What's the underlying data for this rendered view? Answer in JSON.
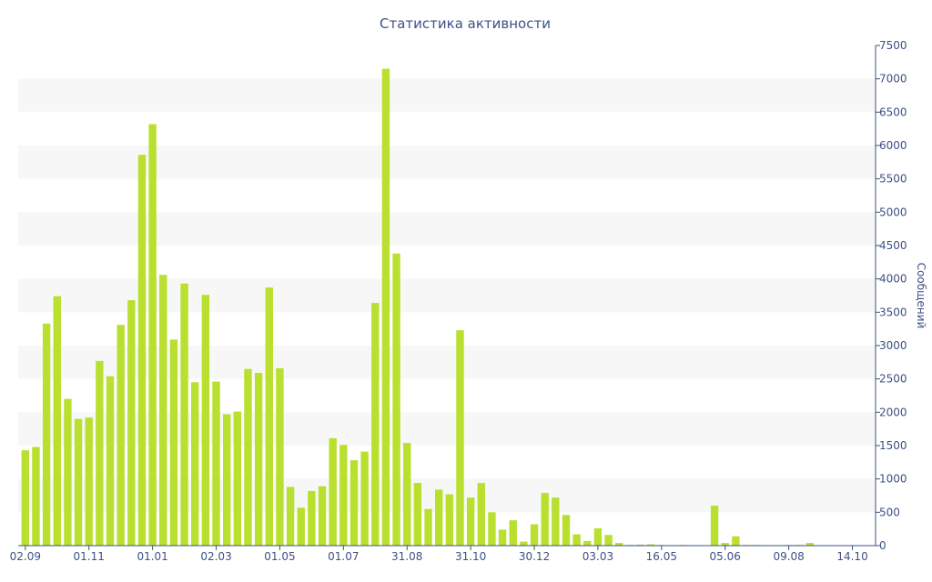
{
  "chart_data": {
    "type": "bar",
    "title": "Статистика активности",
    "ylabel": "Сообщений",
    "xlabel": "",
    "ylim": [
      0,
      7500
    ],
    "yticks": [
      0,
      500,
      1000,
      1500,
      2000,
      2500,
      3000,
      3500,
      4000,
      4500,
      5000,
      5500,
      6000,
      6500,
      7000,
      7500
    ],
    "xtick_labels": [
      "02.09",
      "01.11",
      "01.01",
      "02.03",
      "01.05",
      "01.07",
      "31.08",
      "31.10",
      "30.12",
      "03.03",
      "16.05",
      "05.06",
      "09.08",
      "14.10"
    ],
    "xtick_bar_index": [
      0,
      6,
      12,
      18,
      24,
      30,
      36,
      42,
      48,
      54,
      60,
      66,
      72,
      78
    ],
    "bar_color": "#b9e02f",
    "grid": "alternating horizontal bands",
    "y_axis_position": "right",
    "values": [
      1430,
      1480,
      3330,
      3740,
      2200,
      1900,
      1920,
      2770,
      2540,
      3310,
      3680,
      5860,
      6320,
      4060,
      3090,
      3930,
      2450,
      3760,
      2460,
      1970,
      2010,
      2650,
      2590,
      3870,
      2660,
      880,
      570,
      820,
      890,
      1610,
      1510,
      1280,
      1410,
      3640,
      7150,
      4380,
      1540,
      940,
      550,
      840,
      770,
      3230,
      720,
      940,
      500,
      240,
      380,
      60,
      320,
      790,
      720,
      460,
      170,
      70,
      260,
      160,
      40,
      10,
      15,
      20,
      10,
      5,
      10,
      5,
      5,
      600,
      40,
      140,
      10,
      10,
      5,
      5,
      10,
      10,
      40,
      5,
      5,
      5,
      5,
      5
    ]
  }
}
